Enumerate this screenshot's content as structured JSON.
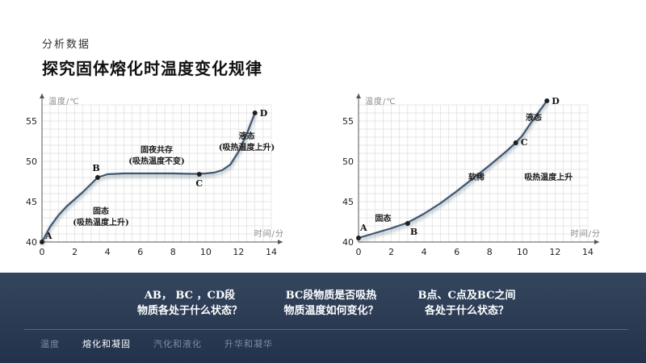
{
  "header": {
    "subtitle": "分析数据",
    "title": "探究固体熔化时温度变化规律"
  },
  "chart_data": [
    {
      "type": "line",
      "xlabel": "时间/分",
      "ylabel": "温度/℃",
      "xlim": [
        0,
        14
      ],
      "ylim": [
        40,
        57
      ],
      "xticks": [
        0,
        2,
        4,
        6,
        8,
        10,
        12,
        14
      ],
      "yticks": [
        40,
        45,
        50,
        55
      ],
      "grid": true,
      "series": [
        {
          "x": [
            0,
            0.5,
            1,
            1.5,
            2,
            2.5,
            3,
            3.4,
            4,
            5,
            6,
            7,
            8,
            9,
            9.5,
            10,
            10.5,
            11,
            11.5,
            12,
            12.5,
            13
          ],
          "y": [
            40,
            41.9,
            43.3,
            44.4,
            45.3,
            46.2,
            47.2,
            48,
            48.4,
            48.5,
            48.5,
            48.5,
            48.5,
            48.45,
            48.45,
            48.5,
            48.6,
            48.9,
            49.6,
            51.2,
            53.4,
            56
          ]
        }
      ],
      "points": [
        {
          "label": "A",
          "x": 0,
          "y": 40
        },
        {
          "label": "B",
          "x": 3.4,
          "y": 48
        },
        {
          "label": "C",
          "x": 9.6,
          "y": 48.4
        },
        {
          "label": "D",
          "x": 13,
          "y": 56
        }
      ],
      "annotations": [
        {
          "lines": [
            "固态",
            "(吸热温度上升)"
          ],
          "x": 3.6,
          "y": 43.5
        },
        {
          "lines": [
            "固夜共存",
            "(吸热温度不变)"
          ],
          "x": 7,
          "y": 51.1
        },
        {
          "lines": [
            "液态",
            "(吸热温度上升)"
          ],
          "x": 12.5,
          "y": 52.8
        }
      ]
    },
    {
      "type": "line",
      "xlabel": "时间/分",
      "ylabel": "温度/℃",
      "xlim": [
        0,
        14
      ],
      "ylim": [
        40,
        57
      ],
      "xticks": [
        0,
        2,
        4,
        6,
        8,
        10,
        12,
        14
      ],
      "yticks": [
        40,
        45,
        50,
        55
      ],
      "grid": true,
      "series": [
        {
          "x": [
            0,
            1,
            2,
            3,
            4,
            5,
            6,
            7,
            8,
            9,
            9.6,
            10,
            10.5,
            11,
            11.5
          ],
          "y": [
            40.5,
            41.1,
            41.7,
            42.4,
            43.5,
            44.8,
            46.3,
            47.9,
            49.5,
            51.2,
            52.3,
            53.2,
            54.7,
            56.1,
            57.5
          ]
        }
      ],
      "points": [
        {
          "label": "A",
          "x": 0,
          "y": 40.5
        },
        {
          "label": "B",
          "x": 3,
          "y": 42.3
        },
        {
          "label": "C",
          "x": 9.6,
          "y": 52.3
        },
        {
          "label": "D",
          "x": 11.5,
          "y": 57.5
        }
      ],
      "annotations": [
        {
          "lines": [
            "固态"
          ],
          "x": 1.5,
          "y": 42.6
        },
        {
          "lines": [
            "软稀"
          ],
          "x": 7.2,
          "y": 47.7
        },
        {
          "lines": [
            "液态"
          ],
          "x": 10.7,
          "y": 55.1
        },
        {
          "lines": [
            "吸热温度上升"
          ],
          "x": 11.6,
          "y": 47.7
        }
      ]
    }
  ],
  "footer": {
    "questions": [
      [
        "AB， BC ，CD段",
        "物质各处于什么状态？"
      ],
      [
        "BC段物质是否吸热",
        "物质温度如何变化？"
      ],
      [
        "B点、C点及BC之间",
        "各处于什么状态？"
      ]
    ],
    "tabs": [
      "温度",
      "熔化和凝固",
      "汽化和液化",
      "升华和凝华"
    ],
    "active_tab": 1,
    "colors": {
      "line": "#3d5570",
      "footer_top": "#34465e",
      "footer_bottom": "#22324a"
    }
  }
}
